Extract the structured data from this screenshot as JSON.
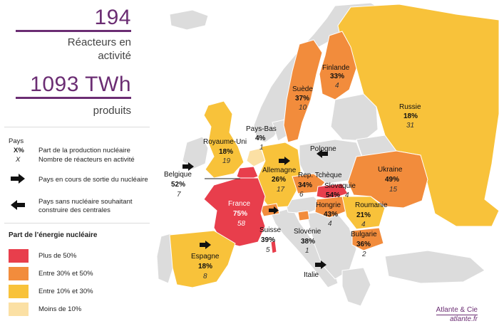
{
  "summary": {
    "reactors_value": "194",
    "reactors_label_1": "Réacteurs en",
    "reactors_label_2": "activité",
    "twh_value": "1093 TWh",
    "twh_label": "produits"
  },
  "key": {
    "pays": "Pays",
    "pct": "X%",
    "part_label": "Part de la production nucléaire",
    "x": "X",
    "nombre_label": "Nombre de réacteurs en activité",
    "sortie_label": "Pays en cours de sortie du nucléaire",
    "construire_label_1": "Pays sans nucléaire souhaitant",
    "construire_label_2": "construire des centrales"
  },
  "legend": {
    "title": "Part de l’énergie nucléaire",
    "items": [
      {
        "label": "Plus de 50%",
        "color": "#e83e4c"
      },
      {
        "label": "Entre 30% et 50%",
        "color": "#f28c3c"
      },
      {
        "label": "Entre 10% et 30%",
        "color": "#f8c23a"
      },
      {
        "label": "Moins de 10%",
        "color": "#fbe0a4"
      }
    ]
  },
  "colors": {
    "grey": "#dcdcdc",
    "sea": "#ffffff",
    "accent": "#6b2d73"
  },
  "countries": {
    "finlande": {
      "name": "Finlande",
      "pct": "33%",
      "count": "4"
    },
    "suede": {
      "name": "Suède",
      "pct": "37%",
      "count": "10"
    },
    "russie": {
      "name": "Russie",
      "pct": "18%",
      "count": "31"
    },
    "paysbas": {
      "name": "Pays-Bas",
      "pct": "4%",
      "count": "1"
    },
    "royaumeuni": {
      "name": "Royaume-Uni",
      "pct": "18%",
      "count": "19"
    },
    "pologne": {
      "name": "Pologne"
    },
    "allemagne": {
      "name": "Allemagne",
      "pct": "26%",
      "count": "17"
    },
    "reptcheque": {
      "name": "Rep. Tchèque",
      "pct": "34%",
      "count": "6"
    },
    "ukraine": {
      "name": "Ukraine",
      "pct": "49%",
      "count": "15"
    },
    "belgique": {
      "name": "Belgique",
      "pct": "52%",
      "count": "7"
    },
    "slovaquie": {
      "name": "Slovaquie",
      "pct": "54%",
      "count": "4"
    },
    "france": {
      "name": "France",
      "pct": "75%",
      "count": "58"
    },
    "hongrie": {
      "name": "Hongrie",
      "pct": "43%",
      "count": "4"
    },
    "roumanie": {
      "name": "Roumanie",
      "pct": "21%",
      "count": "4"
    },
    "suisse": {
      "name": "Suisse",
      "pct": "39%",
      "count": "5"
    },
    "slovenie": {
      "name": "Slovénie",
      "pct": "38%",
      "count": "1"
    },
    "bulgarie": {
      "name": "Bulgarie",
      "pct": "36%",
      "count": "2"
    },
    "espagne": {
      "name": "Espagne",
      "pct": "18%",
      "count": "8"
    },
    "italie": {
      "name": "Italie"
    }
  },
  "credit": {
    "line1": "Atlante & Cie",
    "line2": "atlante.fr"
  }
}
